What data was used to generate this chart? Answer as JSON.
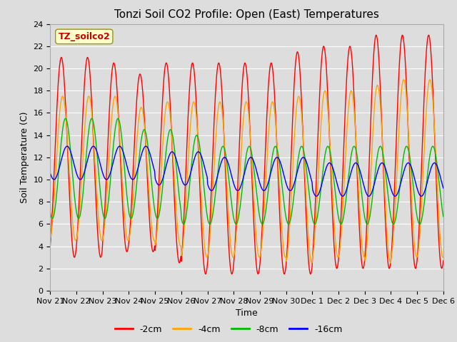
{
  "title": "Tonzi Soil CO2 Profile: Open (East) Temperatures",
  "ylabel": "Soil Temperature (C)",
  "xlabel": "Time",
  "legend_label": "TZ_soilco2",
  "ylim": [
    0,
    24
  ],
  "yticks": [
    0,
    2,
    4,
    6,
    8,
    10,
    12,
    14,
    16,
    18,
    20,
    22,
    24
  ],
  "xlabels": [
    "Nov 21",
    "Nov 22",
    "Nov 23",
    "Nov 24",
    "Nov 25",
    "Nov 26",
    "Nov 27",
    "Nov 28",
    "Nov 29",
    "Nov 30",
    "Dec 1",
    "Dec 2",
    "Dec 3",
    "Dec 4",
    "Dec 5",
    "Dec 6"
  ],
  "series_labels": [
    "-2cm",
    "-4cm",
    "-8cm",
    "-16cm"
  ],
  "series_colors": [
    "#ff0000",
    "#ffa500",
    "#00bb00",
    "#0000ff"
  ],
  "background_color": "#dddddd",
  "plot_bg_color": "#dddddd",
  "n_days": 15,
  "n_points_per_day": 48,
  "amplitudes_2cm": [
    9.0,
    9.0,
    8.5,
    8.0,
    9.0,
    9.5,
    9.5,
    9.5,
    9.5,
    10.0,
    10.0,
    10.0,
    10.5,
    10.5,
    10.5
  ],
  "amplitudes_4cm": [
    6.5,
    6.5,
    6.5,
    6.0,
    6.5,
    7.0,
    7.0,
    7.0,
    7.0,
    7.5,
    7.5,
    7.5,
    8.0,
    8.0,
    8.0
  ],
  "amplitudes_8cm": [
    4.5,
    4.5,
    4.5,
    4.0,
    4.0,
    4.0,
    3.5,
    3.5,
    3.5,
    3.5,
    3.5,
    3.5,
    3.5,
    3.5,
    3.5
  ],
  "amplitudes_16cm": [
    1.5,
    1.5,
    1.5,
    1.5,
    1.5,
    1.5,
    1.5,
    1.5,
    1.5,
    1.5,
    1.5,
    1.5,
    1.5,
    1.5,
    1.5
  ],
  "means_2cm": [
    12.0,
    12.0,
    12.0,
    11.5,
    11.5,
    11.0,
    11.0,
    11.0,
    11.0,
    11.5,
    12.0,
    12.0,
    12.5,
    12.5,
    12.5
  ],
  "means_4cm": [
    11.0,
    11.0,
    11.0,
    10.5,
    10.5,
    10.0,
    10.0,
    10.0,
    10.0,
    10.0,
    10.5,
    10.5,
    10.5,
    11.0,
    11.0
  ],
  "means_8cm": [
    11.0,
    11.0,
    11.0,
    10.5,
    10.5,
    10.0,
    9.5,
    9.5,
    9.5,
    9.5,
    9.5,
    9.5,
    9.5,
    9.5,
    9.5
  ],
  "means_16cm": [
    11.5,
    11.5,
    11.5,
    11.5,
    11.0,
    11.0,
    10.5,
    10.5,
    10.5,
    10.5,
    10.0,
    10.0,
    10.0,
    10.0,
    10.0
  ],
  "phase_2cm": 0.5,
  "phase_4cm": 0.2,
  "phase_8cm": -0.5,
  "phase_16cm": -0.9,
  "grid_color": "#ffffff",
  "title_fontsize": 11,
  "axis_fontsize": 9,
  "tick_fontsize": 8
}
